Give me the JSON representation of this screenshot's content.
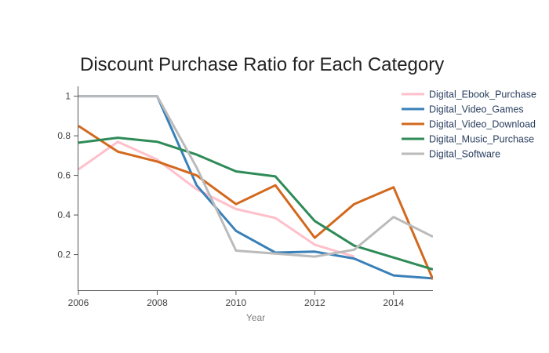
{
  "chart_data": {
    "type": "line",
    "title": "Discount Purchase Ratio for Each Category",
    "xlabel": "Year",
    "ylabel": "",
    "xlim": [
      2006,
      2015
    ],
    "ylim": [
      0.02,
      1.05
    ],
    "x_ticks": [
      "2006",
      "2008",
      "2010",
      "2012",
      "2014"
    ],
    "y_ticks": [
      "0.2",
      "0.4",
      "0.6",
      "0.8",
      "1"
    ],
    "legend_position": "top-right",
    "series": [
      {
        "name": "Digital_Ebook_Purchase",
        "color": "#ffc0cb",
        "x": [
          2006,
          2007,
          2008,
          2009,
          2010,
          2011,
          2012,
          2013
        ],
        "values": [
          0.63,
          0.77,
          0.68,
          0.53,
          0.43,
          0.385,
          0.25,
          0.19
        ]
      },
      {
        "name": "Digital_Video_Games",
        "color": "#3a80b8",
        "x": [
          2006,
          2007,
          2008,
          2009,
          2010,
          2011,
          2012,
          2013,
          2014,
          2015
        ],
        "values": [
          1.0,
          1.0,
          1.0,
          0.55,
          0.32,
          0.21,
          0.215,
          0.18,
          0.095,
          0.08
        ]
      },
      {
        "name": "Digital_Video_Download",
        "color": "#d2691e",
        "x": [
          2006,
          2007,
          2008,
          2009,
          2010,
          2011,
          2012,
          2013,
          2014,
          2015
        ],
        "values": [
          0.85,
          0.72,
          0.67,
          0.6,
          0.455,
          0.55,
          0.285,
          0.455,
          0.54,
          0.075
        ]
      },
      {
        "name": "Digital_Music_Purchase",
        "color": "#2e8b57",
        "x": [
          2006,
          2007,
          2008,
          2009,
          2010,
          2011,
          2012,
          2013,
          2014,
          2015
        ],
        "values": [
          0.765,
          0.79,
          0.77,
          0.705,
          0.62,
          0.595,
          0.37,
          0.245,
          0.185,
          0.125
        ]
      },
      {
        "name": "Digital_Software",
        "color": "#bbbbbb",
        "x": [
          2006,
          2007,
          2008,
          2009,
          2010,
          2011,
          2012,
          2013,
          2014,
          2015
        ],
        "values": [
          1.0,
          1.0,
          1.0,
          0.64,
          0.22,
          0.205,
          0.19,
          0.225,
          0.39,
          0.29
        ]
      }
    ]
  }
}
